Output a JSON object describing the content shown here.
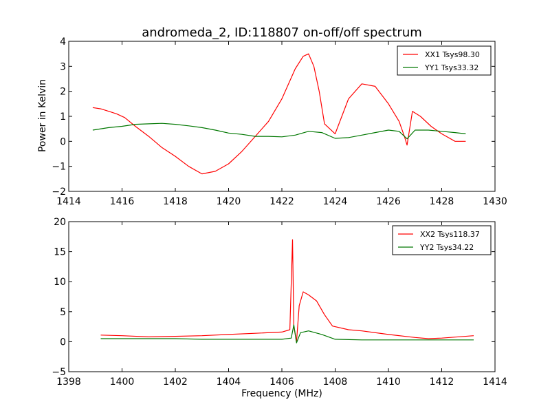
{
  "chart_data": [
    {
      "type": "line",
      "title": "andromeda_2, ID:118807 on-off/off spectrum",
      "xlabel": "",
      "ylabel": "Power in Kelvin",
      "xlim": [
        1414,
        1430
      ],
      "ylim": [
        -2,
        4
      ],
      "xticks": [
        1414,
        1416,
        1418,
        1420,
        1422,
        1424,
        1426,
        1428,
        1430
      ],
      "yticks": [
        -2,
        -1,
        0,
        1,
        2,
        3,
        4
      ],
      "legend": "top-right",
      "grid": false,
      "series": [
        {
          "name": "XX1 Tsys98.30",
          "color": "#ff0000",
          "x": [
            1414.9,
            1415.2,
            1415.5,
            1415.8,
            1416.1,
            1416.5,
            1417.0,
            1417.5,
            1418.0,
            1418.5,
            1419.0,
            1419.5,
            1420.0,
            1420.5,
            1421.0,
            1421.5,
            1422.0,
            1422.5,
            1422.8,
            1423.0,
            1423.2,
            1423.4,
            1423.6,
            1424.0,
            1424.5,
            1425.0,
            1425.5,
            1426.0,
            1426.4,
            1426.6,
            1426.7,
            1426.9,
            1427.2,
            1427.6,
            1428.0,
            1428.5,
            1428.9
          ],
          "y": [
            1.35,
            1.3,
            1.2,
            1.1,
            0.95,
            0.6,
            0.2,
            -0.25,
            -0.6,
            -1.0,
            -1.3,
            -1.2,
            -0.9,
            -0.4,
            0.2,
            0.8,
            1.7,
            2.9,
            3.4,
            3.5,
            3.0,
            2.0,
            0.7,
            0.3,
            1.7,
            2.3,
            2.2,
            1.5,
            0.8,
            0.2,
            -0.15,
            1.2,
            1.0,
            0.6,
            0.3,
            0.0,
            0.0
          ]
        },
        {
          "name": "YY1 Tsys33.32",
          "color": "#007700",
          "x": [
            1414.9,
            1415.5,
            1416.0,
            1416.5,
            1417.0,
            1417.5,
            1418.0,
            1418.5,
            1419.0,
            1419.5,
            1420.0,
            1420.5,
            1421.0,
            1421.5,
            1422.0,
            1422.5,
            1423.0,
            1423.5,
            1424.0,
            1424.5,
            1425.0,
            1425.5,
            1426.0,
            1426.4,
            1426.7,
            1427.0,
            1427.5,
            1428.0,
            1428.5,
            1428.9
          ],
          "y": [
            0.45,
            0.55,
            0.6,
            0.68,
            0.7,
            0.72,
            0.68,
            0.62,
            0.55,
            0.45,
            0.33,
            0.28,
            0.2,
            0.2,
            0.18,
            0.25,
            0.4,
            0.35,
            0.12,
            0.15,
            0.25,
            0.35,
            0.45,
            0.4,
            0.1,
            0.45,
            0.45,
            0.4,
            0.35,
            0.3
          ]
        }
      ]
    },
    {
      "type": "line",
      "title": "",
      "xlabel": "Frequency (MHz)",
      "ylabel": "",
      "xlim": [
        1398,
        1414
      ],
      "ylim": [
        -5,
        20
      ],
      "xticks": [
        1398,
        1400,
        1402,
        1404,
        1406,
        1408,
        1410,
        1412,
        1414
      ],
      "yticks": [
        -5,
        0,
        5,
        10,
        15,
        20
      ],
      "legend": "top-right",
      "grid": false,
      "series": [
        {
          "name": "XX2 Tsys118.37",
          "color": "#ff0000",
          "x": [
            1399.2,
            1400.0,
            1401.0,
            1402.0,
            1403.0,
            1404.0,
            1405.0,
            1406.0,
            1406.3,
            1406.4,
            1406.45,
            1406.55,
            1406.65,
            1406.8,
            1407.0,
            1407.3,
            1407.6,
            1407.9,
            1408.5,
            1409.0,
            1410.0,
            1411.0,
            1411.5,
            1412.0,
            1413.2
          ],
          "y": [
            1.1,
            1.0,
            0.8,
            0.9,
            1.0,
            1.2,
            1.4,
            1.6,
            2.0,
            17.0,
            2.5,
            0.0,
            6.0,
            8.3,
            7.8,
            6.8,
            4.5,
            2.6,
            2.0,
            1.8,
            1.2,
            0.7,
            0.5,
            0.6,
            1.0
          ]
        },
        {
          "name": "YY2 Tsys34.22",
          "color": "#007700",
          "x": [
            1399.2,
            1400.0,
            1401.0,
            1402.0,
            1403.0,
            1404.0,
            1405.0,
            1406.0,
            1406.35,
            1406.45,
            1406.55,
            1406.7,
            1407.0,
            1407.5,
            1408.0,
            1409.0,
            1410.0,
            1411.0,
            1412.0,
            1413.2
          ],
          "y": [
            0.5,
            0.5,
            0.5,
            0.5,
            0.4,
            0.4,
            0.4,
            0.4,
            0.6,
            2.8,
            -0.2,
            1.5,
            1.8,
            1.2,
            0.4,
            0.3,
            0.3,
            0.3,
            0.3,
            0.3
          ]
        }
      ]
    }
  ]
}
